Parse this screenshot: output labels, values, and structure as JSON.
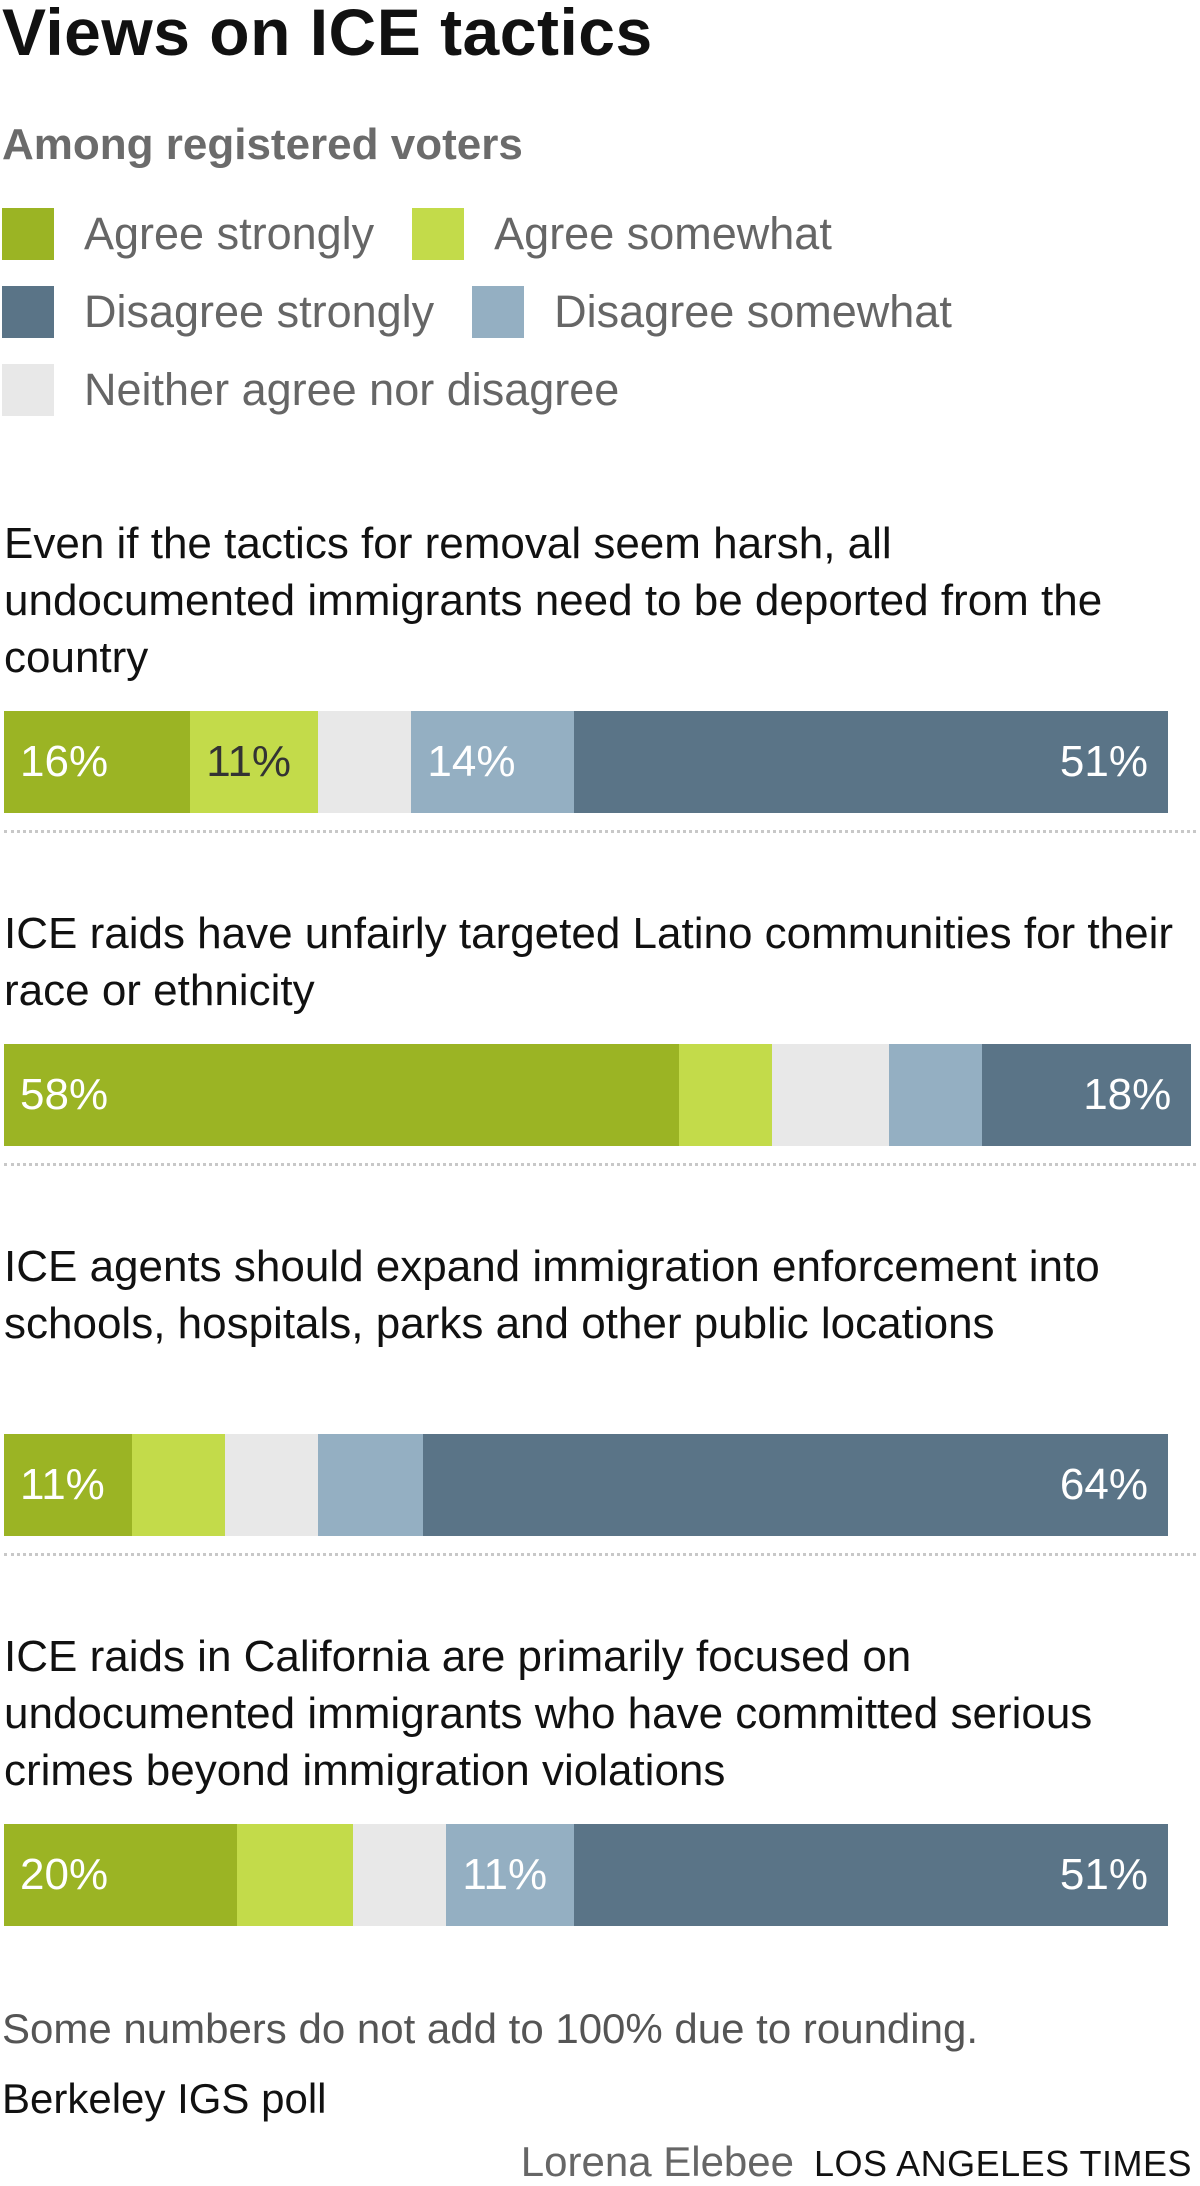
{
  "title": "Views on ICE tactics",
  "subtitle": "Among registered voters",
  "legend": [
    [
      {
        "label": "Agree strongly",
        "color": "#9bb424"
      },
      {
        "label": "Agree somewhat",
        "color": "#c3db4a"
      }
    ],
    [
      {
        "label": "Disagree strongly",
        "color": "#5a7487"
      },
      {
        "label": "Disagree somewhat",
        "color": "#94afc2"
      }
    ],
    [
      {
        "label": "Neither agree nor disagree",
        "color": "#e8e8e8"
      }
    ]
  ],
  "chart_data": {
    "type": "bar",
    "orientation": "horizontal",
    "stacked": true,
    "series_order": [
      "Agree strongly",
      "Agree somewhat",
      "Neither agree nor disagree",
      "Disagree somewhat",
      "Disagree strongly"
    ],
    "colors": {
      "Agree strongly": "#9bb424",
      "Agree somewhat": "#c3db4a",
      "Neither agree nor disagree": "#e8e8e8",
      "Disagree somewhat": "#94afc2",
      "Disagree strongly": "#5a7487"
    },
    "label_colors": {
      "Agree strongly": "#ffffff",
      "Agree somewhat": "#333333",
      "Neither agree nor disagree": "#333333",
      "Disagree somewhat": "#ffffff",
      "Disagree strongly": "#ffffff"
    },
    "questions": [
      {
        "text": "Even if the tactics for removal seem harsh, all undocumented immigrants need to be deported from the country",
        "values": [
          16,
          11,
          8,
          14,
          51
        ],
        "labels": [
          "16%",
          "11%",
          "",
          "14%",
          "51%"
        ]
      },
      {
        "text": "ICE raids have unfairly targeted Latino communities for their race or ethnicity",
        "values": [
          58,
          8,
          10,
          8,
          18
        ],
        "labels": [
          "58%",
          "",
          "",
          "",
          "18%"
        ]
      },
      {
        "text": "ICE agents should expand immigration enforcement into schools, hospitals, parks and other public locations",
        "values": [
          11,
          8,
          8,
          9,
          64
        ],
        "labels": [
          "11%",
          "",
          "",
          "",
          "64%"
        ]
      },
      {
        "text": "ICE raids in California are primarily focused on undocumented immigrants who have committed serious crimes beyond immigration violations",
        "values": [
          20,
          10,
          8,
          11,
          51
        ],
        "labels": [
          "20%",
          "",
          "",
          "11%",
          "51%"
        ]
      }
    ]
  },
  "note": "Some numbers do not add to 100% due to rounding.",
  "source": "Berkeley IGS poll",
  "byline": "Lorena Elebee",
  "publisher": "LOS ANGELES TIMES"
}
